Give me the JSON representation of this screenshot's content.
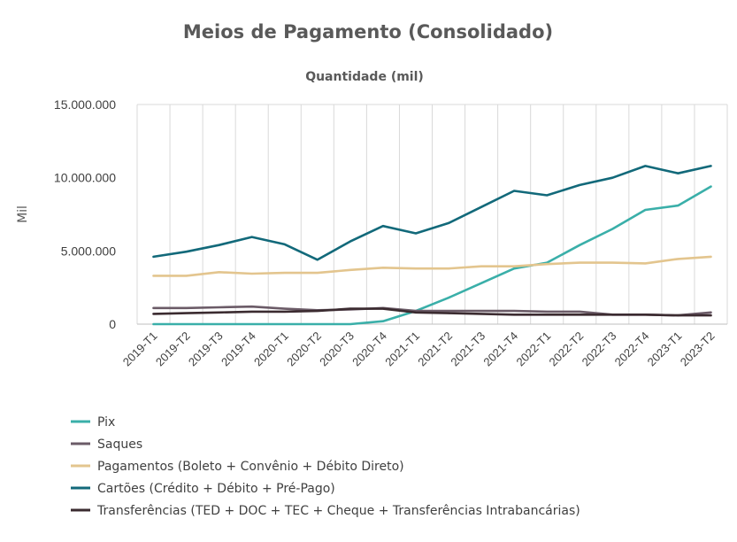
{
  "chart_data": {
    "type": "line",
    "title": "Meios de Pagamento (Consolidado)",
    "subtitle": "Quantidade (mil)",
    "xlabel": "",
    "ylabel": "Mil",
    "ylim": [
      0,
      15000000
    ],
    "yticks": [
      0,
      5000000,
      10000000,
      15000000
    ],
    "ytick_labels": [
      "0",
      "5.000.000",
      "10.000.000",
      "15.000.000"
    ],
    "grid": "vertical",
    "legend_position": "bottom",
    "categories": [
      "2019-T1",
      "2019-T2",
      "2019-T3",
      "2019-T4",
      "2020-T1",
      "2020-T2",
      "2020-T3",
      "2020-T4",
      "2021-T1",
      "2021-T2",
      "2021-T3",
      "2021-T4",
      "2022-T1",
      "2022-T2",
      "2022-T3",
      "2022-T4",
      "2023-T1",
      "2023-T2"
    ],
    "series": [
      {
        "name": "Pix",
        "color": "#3aafa9",
        "values": [
          0,
          0,
          0,
          0,
          0,
          0,
          0,
          200000,
          900000,
          1800000,
          2800000,
          3800000,
          4200000,
          5400000,
          6500000,
          7800000,
          8100000,
          9400000
        ]
      },
      {
        "name": "Saques",
        "color": "#6b5b67",
        "values": [
          1100000,
          1100000,
          1150000,
          1200000,
          1050000,
          950000,
          1000000,
          1100000,
          900000,
          900000,
          900000,
          900000,
          850000,
          850000,
          650000,
          650000,
          600000,
          800000
        ]
      },
      {
        "name": "Pagamentos (Boleto + Convênio + Débito Direto)",
        "color": "#e3c58e",
        "values": [
          3300000,
          3300000,
          3550000,
          3450000,
          3500000,
          3500000,
          3700000,
          3850000,
          3800000,
          3800000,
          3950000,
          3950000,
          4100000,
          4200000,
          4200000,
          4150000,
          4450000,
          4600000
        ]
      },
      {
        "name": "Cartões (Crédito + Débito + Pré-Pago)",
        "color": "#12697a",
        "values": [
          4600000,
          4950000,
          5400000,
          5950000,
          5450000,
          4400000,
          5650000,
          6700000,
          6200000,
          6900000,
          8000000,
          9100000,
          8800000,
          9500000,
          10000000,
          10800000,
          10300000,
          10800000
        ]
      },
      {
        "name": "Transferências (TED + DOC + TEC + Cheque + Transferências Intrabancárias)",
        "color": "#3b2b30",
        "values": [
          700000,
          750000,
          800000,
          850000,
          850000,
          900000,
          1050000,
          1050000,
          800000,
          750000,
          700000,
          650000,
          650000,
          650000,
          650000,
          650000,
          600000,
          600000
        ]
      }
    ]
  }
}
